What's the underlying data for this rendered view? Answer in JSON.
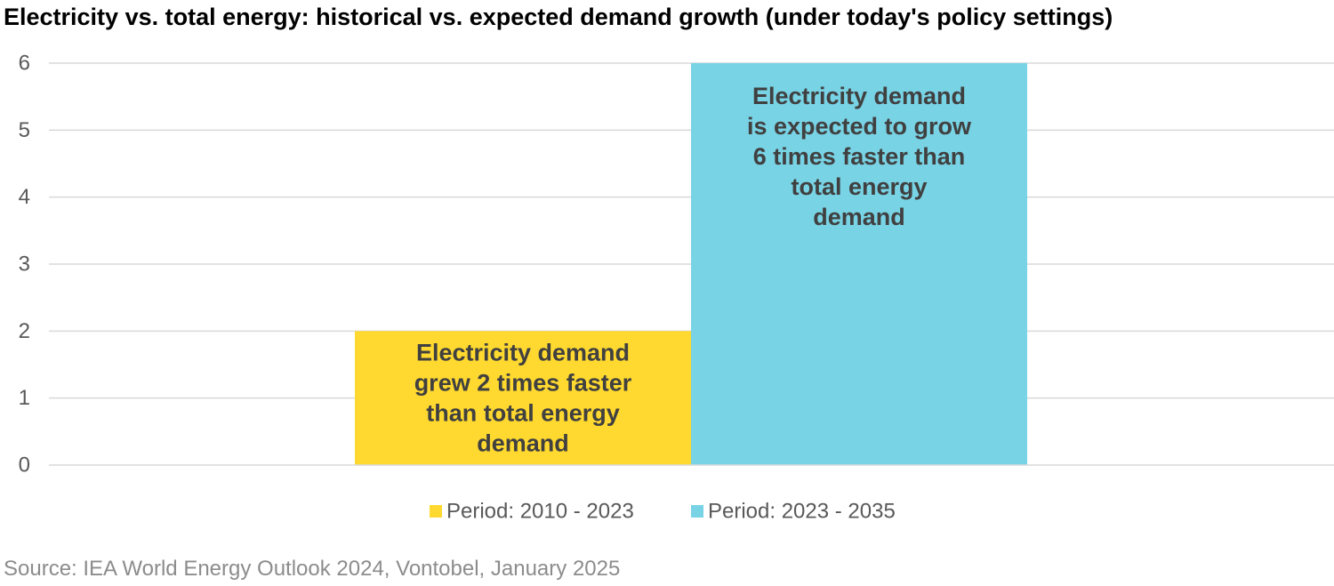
{
  "chart_data": {
    "type": "bar",
    "title": "Electricity vs. total energy: historical vs. expected demand growth (under today's policy settings)",
    "xlabel": "",
    "ylabel": "",
    "ylim": [
      0,
      6
    ],
    "yticks": [
      0,
      1,
      2,
      3,
      4,
      5,
      6
    ],
    "grid": true,
    "legend_position": "bottom",
    "series": [
      {
        "name": "Period: 2010 - 2023",
        "value": 2,
        "color": "#FFD92F",
        "label_lines": [
          "Electricity demand",
          "grew 2 times faster",
          "than total energy",
          "demand"
        ]
      },
      {
        "name": "Period: 2023 - 2035",
        "value": 6,
        "color": "#78D3E5",
        "label_lines": [
          "Electricity demand",
          "is expected to grow",
          "6 times faster than",
          "total energy",
          "demand"
        ]
      }
    ]
  },
  "source": "Source: IEA World Energy Outlook 2024, Vontobel, January 2025"
}
